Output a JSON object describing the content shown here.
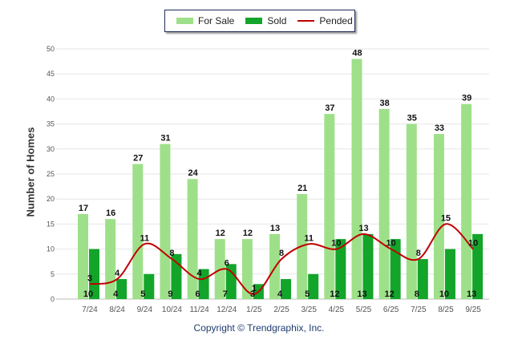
{
  "chart_data": {
    "type": "bar",
    "ylabel": "Number of Homes",
    "ylim": [
      0,
      50
    ],
    "yticks": [
      0,
      5,
      10,
      15,
      20,
      25,
      30,
      35,
      40,
      45,
      50
    ],
    "grid": true,
    "legend_position": "top-center",
    "categories": [
      "7/24",
      "8/24",
      "9/24",
      "10/24",
      "11/24",
      "12/24",
      "1/25",
      "2/25",
      "3/25",
      "4/25",
      "5/25",
      "6/25",
      "7/25",
      "8/25",
      "9/25"
    ],
    "series": [
      {
        "name": "For Sale",
        "type": "bar",
        "color": "#9ee089",
        "values": [
          17,
          16,
          27,
          31,
          24,
          12,
          12,
          13,
          21,
          37,
          48,
          38,
          35,
          33,
          39
        ]
      },
      {
        "name": "Sold",
        "type": "bar",
        "color": "#12a52a",
        "values": [
          10,
          4,
          5,
          9,
          6,
          7,
          3,
          4,
          5,
          12,
          13,
          12,
          8,
          10,
          13
        ]
      },
      {
        "name": "Pended",
        "type": "line",
        "color": "#c00000",
        "values": [
          3,
          4,
          11,
          8,
          4,
          6,
          1,
          8,
          11,
          10,
          13,
          10,
          8,
          15,
          10
        ]
      }
    ]
  },
  "legend": {
    "for_sale": "For Sale",
    "sold": "Sold",
    "pended": "Pended"
  },
  "footer": "Copyright © Trendgraphix, Inc."
}
